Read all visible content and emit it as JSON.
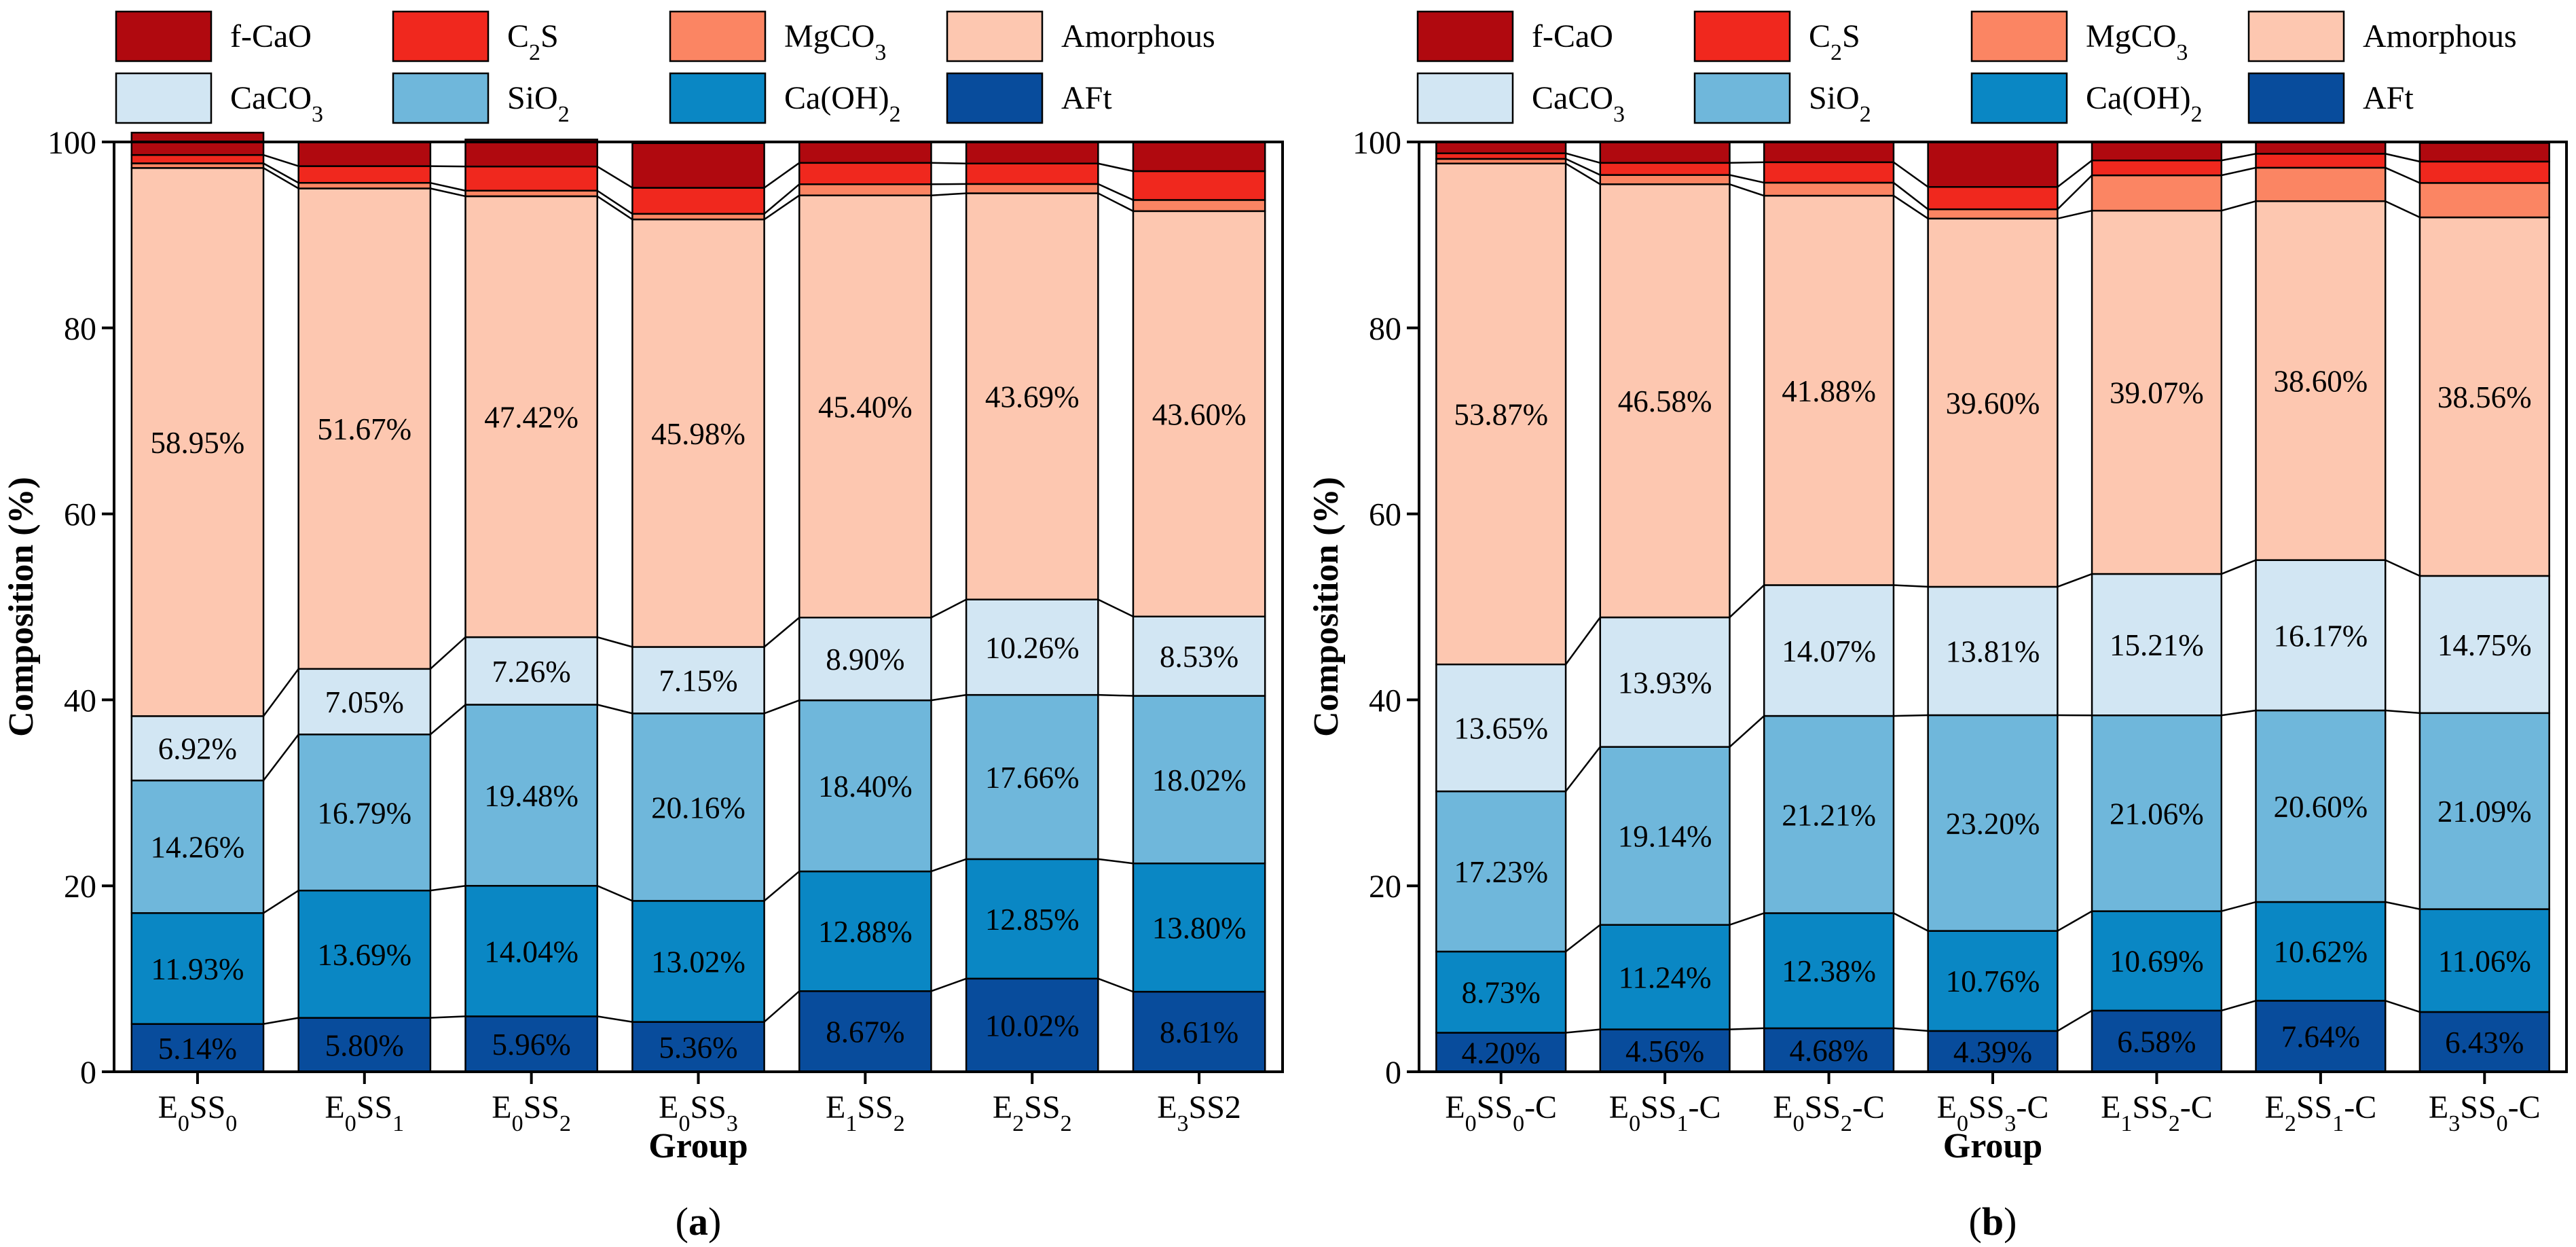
{
  "chart_data": [
    {
      "type": "bar",
      "stacked": true,
      "panel_label": "a",
      "xlabel": "Group",
      "ylabel": "Composition (%)",
      "ylim": [
        0,
        100
      ],
      "yticks": [
        0,
        20,
        40,
        60,
        80,
        100
      ],
      "categories": [
        {
          "base": "E",
          "s1": "0",
          "mid": "SS",
          "s2": "0",
          "suffix": ""
        },
        {
          "base": "E",
          "s1": "0",
          "mid": "SS",
          "s2": "1",
          "suffix": ""
        },
        {
          "base": "E",
          "s1": "0",
          "mid": "SS",
          "s2": "2",
          "suffix": ""
        },
        {
          "base": "E",
          "s1": "0",
          "mid": "SS",
          "s2": "3",
          "suffix": ""
        },
        {
          "base": "E",
          "s1": "1",
          "mid": "SS",
          "s2": "2",
          "suffix": ""
        },
        {
          "base": "E",
          "s1": "2",
          "mid": "SS",
          "s2": "2",
          "suffix": ""
        },
        {
          "base": "E",
          "s1": "3",
          "mid": "SS2",
          "s2": "",
          "suffix": ""
        }
      ],
      "series": [
        {
          "name": "AFt",
          "values": [
            5.14,
            5.8,
            5.96,
            5.36,
            8.67,
            10.02,
            8.61
          ],
          "labels": [
            "5.14%",
            "5.80%",
            "5.96%",
            "5.36%",
            "8.67%",
            "10.02%",
            "8.61%"
          ]
        },
        {
          "name": "Ca(OH)2",
          "values": [
            11.93,
            13.69,
            14.04,
            13.02,
            12.88,
            12.85,
            13.8
          ],
          "labels": [
            "11.93%",
            "13.69%",
            "14.04%",
            "13.02%",
            "12.88%",
            "12.85%",
            "13.80%"
          ]
        },
        {
          "name": "SiO2",
          "values": [
            14.26,
            16.79,
            19.48,
            20.16,
            18.4,
            17.66,
            18.02
          ],
          "labels": [
            "14.26%",
            "16.79%",
            "19.48%",
            "20.16%",
            "18.40%",
            "17.66%",
            "18.02%"
          ]
        },
        {
          "name": "CaCO3",
          "values": [
            6.92,
            7.05,
            7.26,
            7.15,
            8.9,
            10.26,
            8.53
          ],
          "labels": [
            "6.92%",
            "7.05%",
            "7.26%",
            "7.15%",
            "8.90%",
            "10.26%",
            "8.53%"
          ]
        },
        {
          "name": "Amorphous",
          "values": [
            58.95,
            51.67,
            47.42,
            45.98,
            45.4,
            43.69,
            43.6
          ],
          "labels": [
            "58.95%",
            "51.67%",
            "47.42%",
            "45.98%",
            "45.40%",
            "43.69%",
            "43.60%"
          ]
        },
        {
          "name": "MgCO3",
          "values": [
            0.5,
            0.6,
            0.6,
            0.6,
            1.2,
            1.0,
            1.2
          ],
          "labels": []
        },
        {
          "name": "C2S",
          "values": [
            0.9,
            1.8,
            2.6,
            2.8,
            2.3,
            2.2,
            3.1
          ],
          "labels": []
        },
        {
          "name": "f-CaO",
          "values": [
            2.4,
            2.6,
            2.9,
            4.8,
            2.3,
            2.3,
            3.1
          ],
          "labels": []
        }
      ]
    },
    {
      "type": "bar",
      "stacked": true,
      "panel_label": "b",
      "xlabel": "Group",
      "ylabel": "Composition (%)",
      "ylim": [
        0,
        100
      ],
      "yticks": [
        0,
        20,
        40,
        60,
        80,
        100
      ],
      "categories": [
        {
          "base": "E",
          "s1": "0",
          "mid": "SS",
          "s2": "0",
          "suffix": "-C"
        },
        {
          "base": "E",
          "s1": "0",
          "mid": "SS",
          "s2": "1",
          "suffix": "-C"
        },
        {
          "base": "E",
          "s1": "0",
          "mid": "SS",
          "s2": "2",
          "suffix": "-C"
        },
        {
          "base": "E",
          "s1": "0",
          "mid": "SS",
          "s2": "3",
          "suffix": "-C"
        },
        {
          "base": "E",
          "s1": "1",
          "mid": "SS",
          "s2": "2",
          "suffix": "-C"
        },
        {
          "base": "E",
          "s1": "2",
          "mid": "SS",
          "s2": "1",
          "suffix": "-C"
        },
        {
          "base": "E",
          "s1": "3",
          "mid": "SS",
          "s2": "0",
          "suffix": "-C"
        }
      ],
      "series": [
        {
          "name": "AFt",
          "values": [
            4.2,
            4.56,
            4.68,
            4.39,
            6.58,
            7.64,
            6.43
          ],
          "labels": [
            "4.20%",
            "4.56%",
            "4.68%",
            "4.39%",
            "6.58%",
            "7.64%",
            "6.43%"
          ]
        },
        {
          "name": "Ca(OH)2",
          "values": [
            8.73,
            11.24,
            12.38,
            10.76,
            10.69,
            10.62,
            11.06
          ],
          "labels": [
            "8.73%",
            "11.24%",
            "12.38%",
            "10.76%",
            "10.69%",
            "10.62%",
            "11.06%"
          ]
        },
        {
          "name": "SiO2",
          "values": [
            17.23,
            19.14,
            21.21,
            23.2,
            21.06,
            20.6,
            21.09
          ],
          "labels": [
            "17.23%",
            "19.14%",
            "21.21%",
            "23.20%",
            "21.06%",
            "20.60%",
            "21.09%"
          ]
        },
        {
          "name": "CaCO3",
          "values": [
            13.65,
            13.93,
            14.07,
            13.81,
            15.21,
            16.17,
            14.75
          ],
          "labels": [
            "13.65%",
            "13.93%",
            "14.07%",
            "13.81%",
            "15.21%",
            "16.17%",
            "14.75%"
          ]
        },
        {
          "name": "Amorphous",
          "values": [
            53.87,
            46.58,
            41.88,
            39.6,
            39.07,
            38.6,
            38.56
          ],
          "labels": [
            "53.87%",
            "46.58%",
            "41.88%",
            "39.60%",
            "39.07%",
            "38.60%",
            "38.56%"
          ]
        },
        {
          "name": "MgCO3",
          "values": [
            0.5,
            1.0,
            1.4,
            1.0,
            3.8,
            3.6,
            3.7
          ],
          "labels": []
        },
        {
          "name": "C2S",
          "values": [
            0.6,
            1.3,
            2.2,
            2.4,
            1.6,
            1.5,
            2.3
          ],
          "labels": []
        },
        {
          "name": "f-CaO",
          "values": [
            1.2,
            2.2,
            2.2,
            4.8,
            2.0,
            1.3,
            2.0
          ],
          "labels": []
        }
      ]
    }
  ],
  "legend": [
    {
      "name": "f-CaO",
      "base": "f-CaO",
      "sub": "",
      "after": "",
      "color": "#b0090f"
    },
    {
      "name": "C2S",
      "base": "C",
      "sub": "2",
      "after": "S",
      "color": "#f0281e"
    },
    {
      "name": "MgCO3",
      "base": "MgCO",
      "sub": "3",
      "after": "",
      "color": "#fb8563"
    },
    {
      "name": "Amorphous",
      "base": "Amorphous",
      "sub": "",
      "after": "",
      "color": "#fdc7b0"
    },
    {
      "name": "CaCO3",
      "base": "CaCO",
      "sub": "3",
      "after": "",
      "color": "#d2e6f3"
    },
    {
      "name": "SiO2",
      "base": "SiO",
      "sub": "2",
      "after": "",
      "color": "#6fb7db"
    },
    {
      "name": "Ca(OH)2",
      "base": "Ca(OH)",
      "sub": "2",
      "after": "",
      "color": "#0a87c4"
    },
    {
      "name": "AFt",
      "base": "AFt",
      "sub": "",
      "after": "",
      "color": "#084c9c"
    }
  ]
}
